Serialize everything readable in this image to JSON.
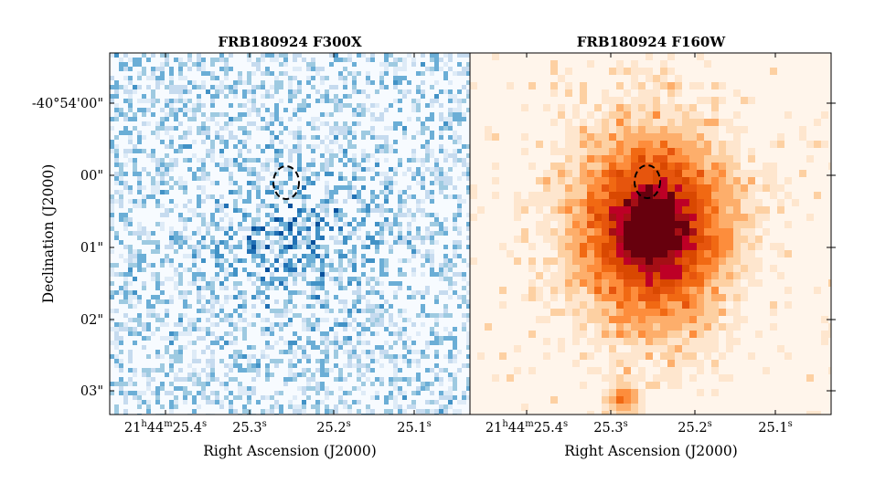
{
  "chart_data": [
    {
      "type": "heatmap",
      "title": "FRB180924 F300X",
      "colormap": "blues",
      "xlabel": "Right Ascension (J2000)",
      "ylabel": "Declination (J2000)",
      "x_ticks": [
        {
          "hours": "21",
          "minutes": "44",
          "seconds": "25.4",
          "unit": "s"
        },
        {
          "seconds": "25.3",
          "unit": "s"
        },
        {
          "seconds": "25.2",
          "unit": "s"
        },
        {
          "seconds": "25.1",
          "unit": "s"
        }
      ],
      "y_ticks": [
        "-40°54'00\"",
        "00\"",
        "01\"",
        "02\"",
        "03\""
      ],
      "ellipse_style": "dashed"
    },
    {
      "type": "heatmap",
      "title": "FRB180924 F160W",
      "colormap": "oranges-reds",
      "xlabel": "Right Ascension (J2000)",
      "x_ticks": [
        {
          "hours": "21",
          "minutes": "44",
          "seconds": "25.4",
          "unit": "s"
        },
        {
          "seconds": "25.3",
          "unit": "s"
        },
        {
          "seconds": "25.2",
          "unit": "s"
        },
        {
          "seconds": "25.1",
          "unit": "s"
        }
      ],
      "ellipse_style": "dashed"
    }
  ]
}
